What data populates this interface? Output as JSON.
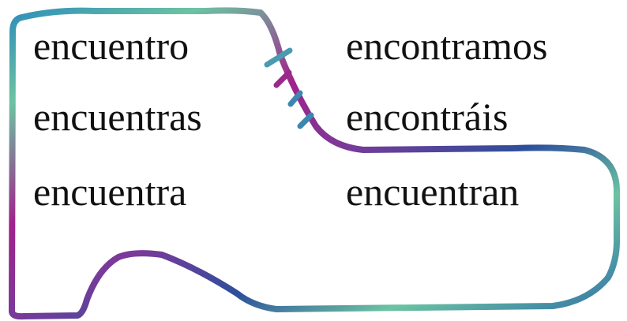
{
  "conjugation": {
    "singular": [
      "encuentro",
      "encuentras",
      "encuentra"
    ],
    "plural": [
      "encontramos",
      "encontráis",
      "encuentran"
    ]
  }
}
